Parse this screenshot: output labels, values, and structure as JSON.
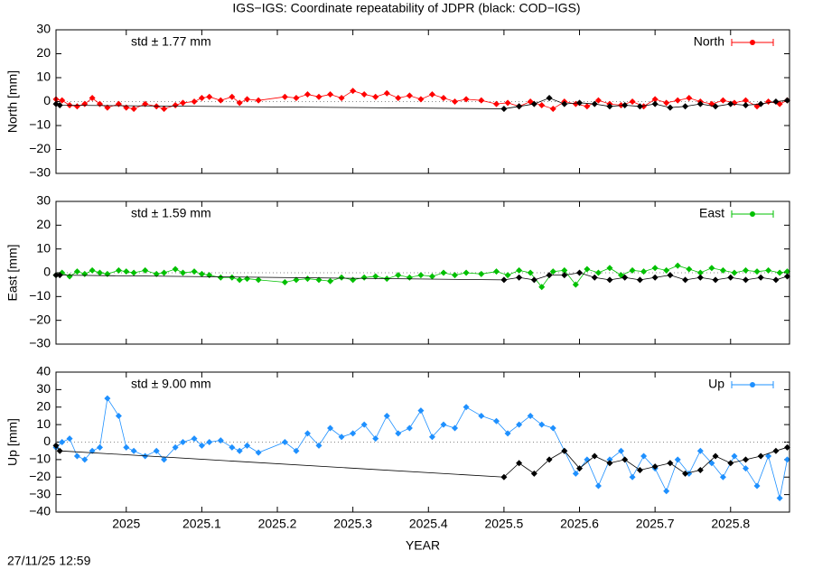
{
  "chart_data": [
    {
      "type": "line",
      "title": "IGS−IGS: Coordinate repeatability of JDPR (black: COD−IGS)",
      "ylabel": "North [mm]",
      "annotation": "std ± 1.77 mm",
      "xlim": [
        2024.907,
        2025.878
      ],
      "xticks": [
        2025,
        2025.1,
        2025.2,
        2025.3,
        2025.4,
        2025.5,
        2025.6,
        2025.7,
        2025.8
      ],
      "ylim": [
        -30,
        30
      ],
      "yticks": [
        {
          "value": -30,
          "label": "−30"
        },
        {
          "value": -20,
          "label": "−20"
        },
        {
          "value": -10,
          "label": "−10"
        },
        0,
        10,
        20,
        30
      ],
      "zero_line": true,
      "series": [
        {
          "name": "North",
          "color": "#ff0000",
          "x": [
            2024.907,
            2024.915,
            2024.925,
            2024.935,
            2024.945,
            2024.955,
            2024.965,
            2024.975,
            2024.99,
            2025.0,
            2025.01,
            2025.025,
            2025.04,
            2025.05,
            2025.065,
            2025.075,
            2025.09,
            2025.1,
            2025.11,
            2025.125,
            2025.14,
            2025.15,
            2025.16,
            2025.175,
            2025.21,
            2025.225,
            2025.24,
            2025.255,
            2025.27,
            2025.285,
            2025.3,
            2025.315,
            2025.33,
            2025.345,
            2025.36,
            2025.375,
            2025.39,
            2025.405,
            2025.42,
            2025.435,
            2025.45,
            2025.47,
            2025.49,
            2025.505,
            2025.52,
            2025.535,
            2025.55,
            2025.565,
            2025.58,
            2025.595,
            2025.61,
            2025.625,
            2025.64,
            2025.655,
            2025.67,
            2025.685,
            2025.7,
            2025.715,
            2025.73,
            2025.745,
            2025.76,
            2025.775,
            2025.79,
            2025.805,
            2025.82,
            2025.835,
            2025.85,
            2025.865,
            2025.875
          ],
          "values": [
            1,
            0.5,
            -1.5,
            -2,
            -1,
            1.5,
            -1,
            -2.5,
            -1,
            -2.5,
            -3,
            -1,
            -2,
            -3,
            -1.5,
            -0.5,
            0,
            1.5,
            2,
            0.5,
            2,
            -0.5,
            1,
            0.5,
            2,
            1.5,
            3,
            2,
            3,
            1.5,
            4.5,
            3,
            2,
            3.5,
            1.5,
            2.5,
            1,
            3,
            1.5,
            0,
            1,
            0.5,
            -1,
            -0.5,
            -2,
            0,
            -1.5,
            -3,
            0,
            -1,
            -2,
            0.5,
            -1,
            -1.5,
            0,
            -2,
            1,
            -0.5,
            0.5,
            1.5,
            0,
            -1,
            0.5,
            -0.5,
            0.5,
            -2,
            0,
            -1,
            0.5
          ]
        },
        {
          "color": "#000000",
          "x": [
            2024.907,
            2024.912,
            2025.5,
            2025.52,
            2025.54,
            2025.56,
            2025.58,
            2025.6,
            2025.62,
            2025.64,
            2025.66,
            2025.68,
            2025.7,
            2025.72,
            2025.74,
            2025.76,
            2025.78,
            2025.8,
            2025.82,
            2025.84,
            2025.86,
            2025.875
          ],
          "values": [
            -1,
            -1.5,
            -3,
            -2,
            -1,
            1.5,
            -1,
            -0.5,
            -1,
            -2,
            -1.5,
            -2,
            -1,
            -2.5,
            -2,
            -1,
            -2,
            -1,
            -1.5,
            -1,
            0,
            0.5
          ]
        }
      ]
    },
    {
      "type": "line",
      "ylabel": "East [mm]",
      "annotation": "std ± 1.59 mm",
      "xlim": [
        2024.907,
        2025.878
      ],
      "xticks": [
        2025,
        2025.1,
        2025.2,
        2025.3,
        2025.4,
        2025.5,
        2025.6,
        2025.7,
        2025.8
      ],
      "ylim": [
        -30,
        30
      ],
      "yticks": [
        {
          "value": -30,
          "label": "−30"
        },
        {
          "value": -20,
          "label": "−20"
        },
        {
          "value": -10,
          "label": "−10"
        },
        0,
        10,
        20,
        30
      ],
      "zero_line": true,
      "series": [
        {
          "name": "East",
          "color": "#00c000",
          "x": [
            2024.907,
            2024.915,
            2024.925,
            2024.935,
            2024.945,
            2024.955,
            2024.965,
            2024.975,
            2024.99,
            2025.0,
            2025.01,
            2025.025,
            2025.04,
            2025.05,
            2025.065,
            2025.075,
            2025.09,
            2025.1,
            2025.11,
            2025.125,
            2025.14,
            2025.15,
            2025.16,
            2025.175,
            2025.21,
            2025.225,
            2025.24,
            2025.255,
            2025.27,
            2025.285,
            2025.3,
            2025.315,
            2025.33,
            2025.345,
            2025.36,
            2025.375,
            2025.39,
            2025.405,
            2025.42,
            2025.435,
            2025.45,
            2025.47,
            2025.49,
            2025.505,
            2025.52,
            2025.535,
            2025.55,
            2025.565,
            2025.58,
            2025.595,
            2025.61,
            2025.625,
            2025.64,
            2025.655,
            2025.67,
            2025.685,
            2025.7,
            2025.715,
            2025.73,
            2025.745,
            2025.76,
            2025.775,
            2025.79,
            2025.805,
            2025.82,
            2025.835,
            2025.85,
            2025.865,
            2025.875
          ],
          "values": [
            -1,
            0,
            -1.5,
            0.5,
            -0.5,
            1,
            0,
            -0.5,
            1,
            0.5,
            0,
            1,
            -0.5,
            0,
            1.5,
            0,
            0.5,
            -0.5,
            -1,
            -2,
            -2,
            -3,
            -2.5,
            -3,
            -4,
            -3,
            -2.5,
            -3,
            -3.5,
            -2,
            -3,
            -2,
            -1.5,
            -2.5,
            -1,
            -2,
            -1,
            -1.5,
            0,
            -1,
            0,
            -0.5,
            0.5,
            -1,
            1,
            0,
            -6,
            0.5,
            1,
            -5,
            1.5,
            0,
            2,
            -1,
            1,
            0.5,
            2,
            1,
            3,
            1.5,
            0,
            2,
            1,
            0,
            1,
            0.5,
            1,
            0,
            0.5
          ]
        },
        {
          "color": "#000000",
          "x": [
            2024.907,
            2024.912,
            2025.5,
            2025.52,
            2025.54,
            2025.56,
            2025.58,
            2025.6,
            2025.62,
            2025.64,
            2025.66,
            2025.68,
            2025.7,
            2025.72,
            2025.74,
            2025.76,
            2025.78,
            2025.8,
            2025.82,
            2025.84,
            2025.86,
            2025.875
          ],
          "values": [
            -1,
            -1,
            -3,
            -2,
            -3,
            -1,
            -1,
            0,
            -2,
            -3,
            -2,
            -3,
            -2,
            -1,
            -3,
            -2,
            -3,
            -2,
            -3,
            -2,
            -3,
            -1.5
          ]
        }
      ]
    },
    {
      "type": "line",
      "ylabel": "Up [mm]",
      "annotation": "std ± 9.00 mm",
      "xlabel": "YEAR",
      "xlim": [
        2024.907,
        2025.878
      ],
      "xticks": [
        2025,
        2025.1,
        2025.2,
        2025.3,
        2025.4,
        2025.5,
        2025.6,
        2025.7,
        2025.8
      ],
      "ylim": [
        -40,
        40
      ],
      "yticks": [
        {
          "value": -40,
          "label": "−40"
        },
        {
          "value": -30,
          "label": "−30"
        },
        {
          "value": -20,
          "label": "−20"
        },
        {
          "value": -10,
          "label": "−10"
        },
        0,
        10,
        20,
        30,
        40
      ],
      "zero_line": true,
      "series": [
        {
          "name": "Up",
          "color": "#1e90ff",
          "x": [
            2024.907,
            2024.915,
            2024.925,
            2024.935,
            2024.945,
            2024.955,
            2024.965,
            2024.975,
            2024.99,
            2025.0,
            2025.01,
            2025.025,
            2025.04,
            2025.05,
            2025.065,
            2025.075,
            2025.09,
            2025.1,
            2025.11,
            2025.125,
            2025.14,
            2025.15,
            2025.16,
            2025.175,
            2025.21,
            2025.225,
            2025.24,
            2025.255,
            2025.27,
            2025.285,
            2025.3,
            2025.315,
            2025.33,
            2025.345,
            2025.36,
            2025.375,
            2025.39,
            2025.405,
            2025.42,
            2025.435,
            2025.45,
            2025.47,
            2025.49,
            2025.505,
            2025.52,
            2025.535,
            2025.55,
            2025.565,
            2025.58,
            2025.595,
            2025.61,
            2025.625,
            2025.64,
            2025.655,
            2025.67,
            2025.685,
            2025.7,
            2025.715,
            2025.73,
            2025.745,
            2025.76,
            2025.775,
            2025.79,
            2025.805,
            2025.82,
            2025.835,
            2025.85,
            2025.865,
            2025.875
          ],
          "values": [
            -3,
            0,
            2,
            -8,
            -10,
            -5,
            -3,
            25,
            15,
            -3,
            -5,
            -8,
            -5,
            -10,
            -3,
            0,
            2,
            -2,
            0,
            1,
            -3,
            -5,
            -2,
            -6,
            0,
            -5,
            5,
            -2,
            8,
            3,
            5,
            10,
            2,
            15,
            5,
            8,
            18,
            3,
            10,
            8,
            20,
            15,
            12,
            5,
            10,
            15,
            10,
            8,
            -5,
            -18,
            -10,
            -25,
            -10,
            -5,
            -20,
            -8,
            -15,
            -28,
            -10,
            -18,
            -5,
            -12,
            -20,
            -8,
            -15,
            -25,
            -8,
            -32,
            -10
          ]
        },
        {
          "color": "#000000",
          "x": [
            2024.907,
            2024.912,
            2025.5,
            2025.52,
            2025.54,
            2025.56,
            2025.58,
            2025.6,
            2025.62,
            2025.64,
            2025.66,
            2025.68,
            2025.7,
            2025.72,
            2025.74,
            2025.76,
            2025.78,
            2025.8,
            2025.82,
            2025.84,
            2025.86,
            2025.875
          ],
          "values": [
            -2,
            -5,
            -20,
            -12,
            -18,
            -10,
            -5,
            -15,
            -8,
            -12,
            -10,
            -16,
            -14,
            -12,
            -18,
            -16,
            -8,
            -12,
            -10,
            -8,
            -5,
            -3
          ]
        }
      ]
    }
  ],
  "footer": "27/11/25 12:59"
}
